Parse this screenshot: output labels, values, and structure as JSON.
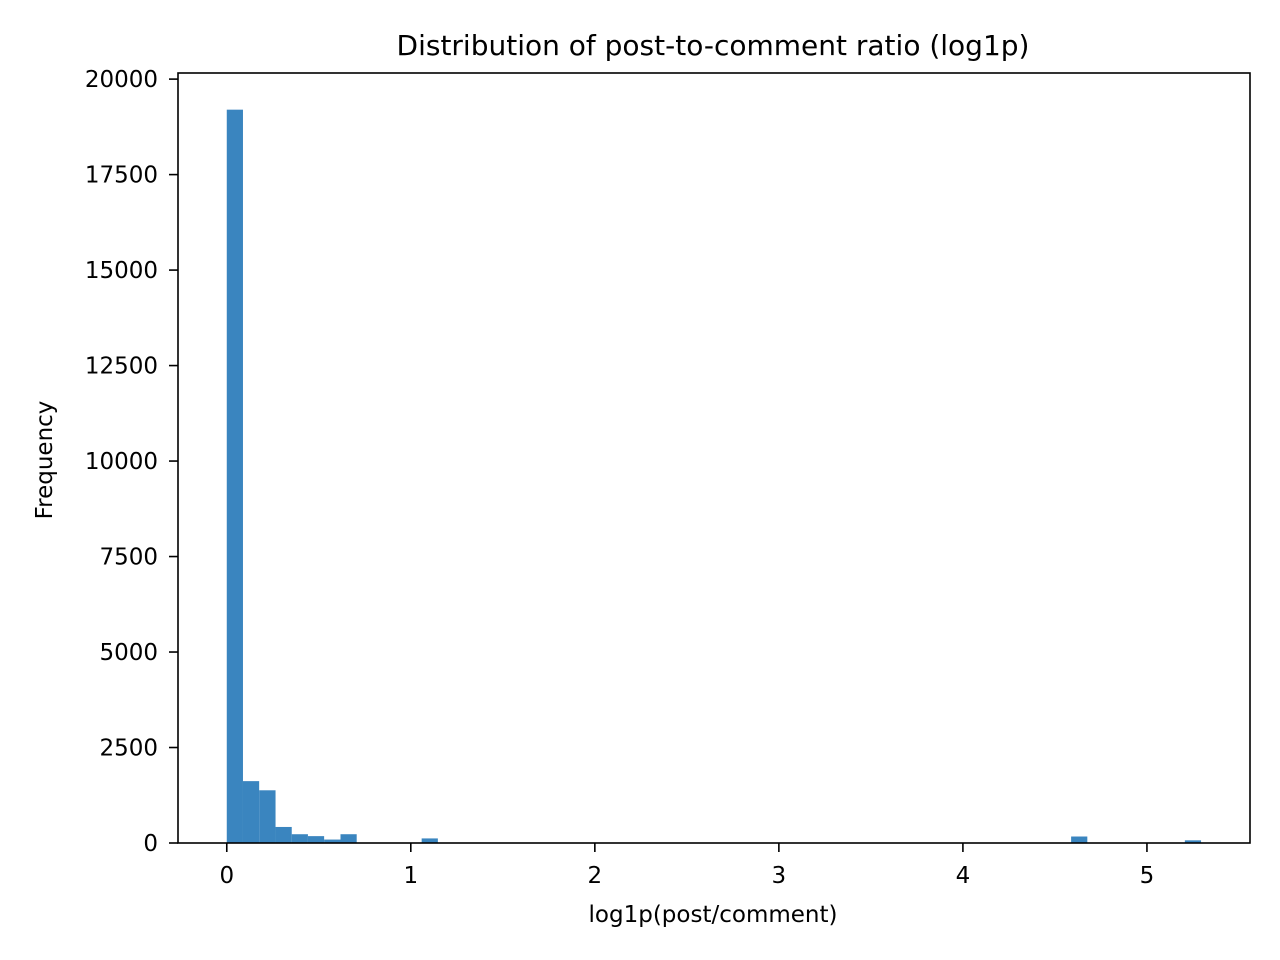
{
  "chart_data": {
    "type": "bar",
    "title": "Distribution of post-to-comment ratio (log1p)",
    "xlabel": "log1p(post/comment)",
    "ylabel": "Frequency",
    "xlim": [
      -0.265,
      5.56
    ],
    "ylim": [
      0,
      20160
    ],
    "x_ticks": [
      0,
      1,
      2,
      3,
      4,
      5
    ],
    "y_ticks": [
      0,
      2500,
      5000,
      7500,
      10000,
      12500,
      15000,
      17500,
      20000
    ],
    "grid": false,
    "bar_color": "#3a85bf",
    "bins": [
      {
        "x0": 0.0,
        "x1": 0.088,
        "value": 19200
      },
      {
        "x0": 0.088,
        "x1": 0.176,
        "value": 1620
      },
      {
        "x0": 0.176,
        "x1": 0.265,
        "value": 1380
      },
      {
        "x0": 0.265,
        "x1": 0.353,
        "value": 420
      },
      {
        "x0": 0.353,
        "x1": 0.441,
        "value": 230
      },
      {
        "x0": 0.441,
        "x1": 0.529,
        "value": 180
      },
      {
        "x0": 0.529,
        "x1": 0.618,
        "value": 90
      },
      {
        "x0": 0.618,
        "x1": 0.706,
        "value": 230
      },
      {
        "x0": 1.059,
        "x1": 1.147,
        "value": 120
      },
      {
        "x0": 4.588,
        "x1": 4.676,
        "value": 170
      },
      {
        "x0": 5.206,
        "x1": 5.294,
        "value": 70
      }
    ]
  }
}
